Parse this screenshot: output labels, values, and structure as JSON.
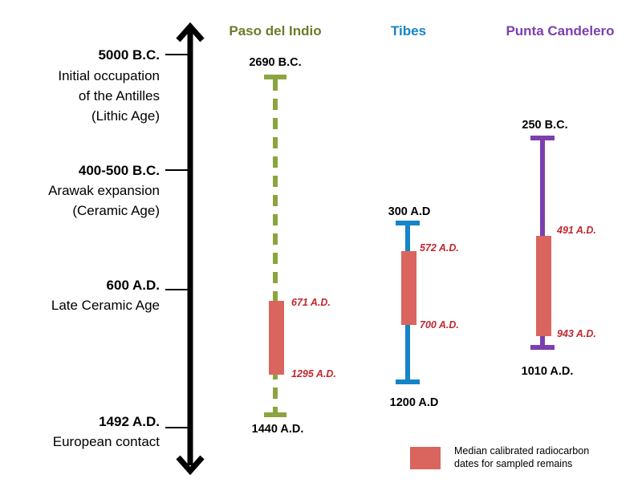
{
  "colors": {
    "paso": "#8ba43f",
    "tibes": "#1584c8",
    "punta": "#7b3fb0",
    "median": "#d9655e",
    "median_label": "#c0282f",
    "timeline": "#000000"
  },
  "timeline": {
    "events": [
      {
        "date": "5000 B.C.",
        "lines": [
          "Initial occupation",
          "of the Antilles",
          "(Lithic Age)"
        ]
      },
      {
        "date": "400-500 B.C.",
        "lines": [
          "Arawak expansion",
          "(Ceramic Age)"
        ]
      },
      {
        "date": "600 A.D.",
        "lines": [
          "Late Ceramic Age"
        ]
      },
      {
        "date": "1492 A.D.",
        "lines": [
          "European contact"
        ]
      }
    ]
  },
  "sites": [
    {
      "name": "Paso del Indio",
      "line_style": "dashed",
      "start_label": "2690 B.C.",
      "end_label": "1440 A.D.",
      "median_start": "671 A.D.",
      "median_end": "1295 A.D."
    },
    {
      "name": "Tibes",
      "line_style": "solid",
      "start_label": "300 A.D",
      "end_label": "1200 A.D",
      "median_start": "572 A.D.",
      "median_end": "700 A.D."
    },
    {
      "name": "Punta Candelero",
      "line_style": "solid",
      "start_label": "250 B.C.",
      "end_label": "1010 A.D.",
      "median_start": "491 A.D.",
      "median_end": "943 A.D."
    }
  ],
  "legend": {
    "lines": [
      "Median calibrated radiocarbon",
      "dates for sampled remains"
    ]
  }
}
